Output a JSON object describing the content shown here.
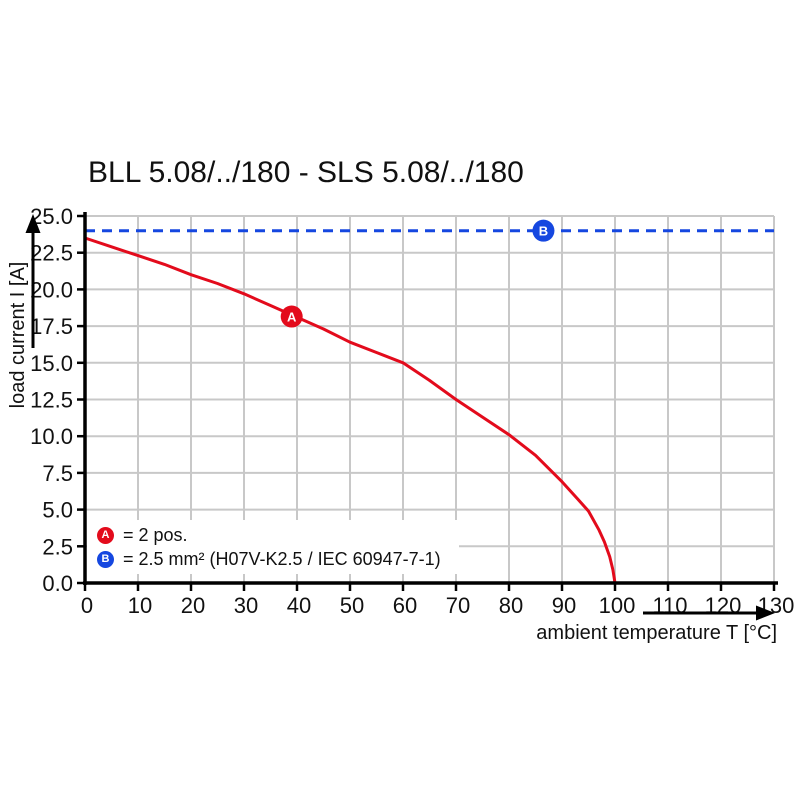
{
  "title": "BLL 5.08/../180 - SLS 5.08/../180",
  "colors": {
    "red": "#e30b1c",
    "blue": "#1547e0",
    "grid": "#c8c8c8",
    "axis": "#000000",
    "background": "#ffffff"
  },
  "chart_data": {
    "type": "line",
    "title": "BLL 5.08/../180 - SLS 5.08/../180",
    "xlabel": "ambient temperature T [°C]",
    "ylabel": "load current I [A]",
    "xlim": [
      0,
      130
    ],
    "ylim": [
      0,
      25
    ],
    "grid": true,
    "x_ticks": [
      0,
      10,
      20,
      30,
      40,
      50,
      60,
      70,
      80,
      90,
      100,
      110,
      120,
      130
    ],
    "x_tick_labels": [
      "0",
      "10",
      "20",
      "30",
      "40",
      "50",
      "60",
      "70",
      "80",
      "90",
      "100",
      "110",
      "120",
      "130"
    ],
    "y_ticks": [
      0,
      2.5,
      5,
      7.5,
      10,
      12.5,
      15,
      17.5,
      20,
      22.5,
      25
    ],
    "y_tick_labels": [
      "0.0",
      "2.5",
      "5.0",
      "7.5",
      "10.0",
      "12.5",
      "15.0",
      "17.5",
      "20.0",
      "22.5",
      "25.0"
    ],
    "legend_position": "bottom-left-inside",
    "series": [
      {
        "name": "A",
        "label": "= 2 pos.",
        "color": "#e30b1c",
        "style": "solid",
        "points": [
          [
            0,
            23.5
          ],
          [
            5,
            22.9
          ],
          [
            10,
            22.3
          ],
          [
            15,
            21.7
          ],
          [
            20,
            21.0
          ],
          [
            25,
            20.4
          ],
          [
            30,
            19.7
          ],
          [
            35,
            18.9
          ],
          [
            40,
            18.1
          ],
          [
            45,
            17.3
          ],
          [
            50,
            16.4
          ],
          [
            55,
            15.7
          ],
          [
            60,
            15.0
          ],
          [
            65,
            13.8
          ],
          [
            70,
            12.5
          ],
          [
            75,
            11.3
          ],
          [
            80,
            10.1
          ],
          [
            85,
            8.7
          ],
          [
            90,
            6.9
          ],
          [
            93,
            5.7
          ],
          [
            95,
            4.9
          ],
          [
            97,
            3.6
          ],
          [
            98,
            2.8
          ],
          [
            99,
            1.8
          ],
          [
            99.6,
            0.9
          ],
          [
            100,
            0
          ]
        ],
        "marker": {
          "x": 39,
          "y": 18.15,
          "label": "A"
        }
      },
      {
        "name": "B",
        "label": "= 2.5 mm² (H07V-K2.5 / IEC 60947-7-1)",
        "color": "#1547e0",
        "style": "dashed",
        "points": [
          [
            0,
            24
          ],
          [
            130,
            24
          ]
        ],
        "marker": {
          "x": 86.5,
          "y": 24,
          "label": "B"
        }
      }
    ]
  }
}
